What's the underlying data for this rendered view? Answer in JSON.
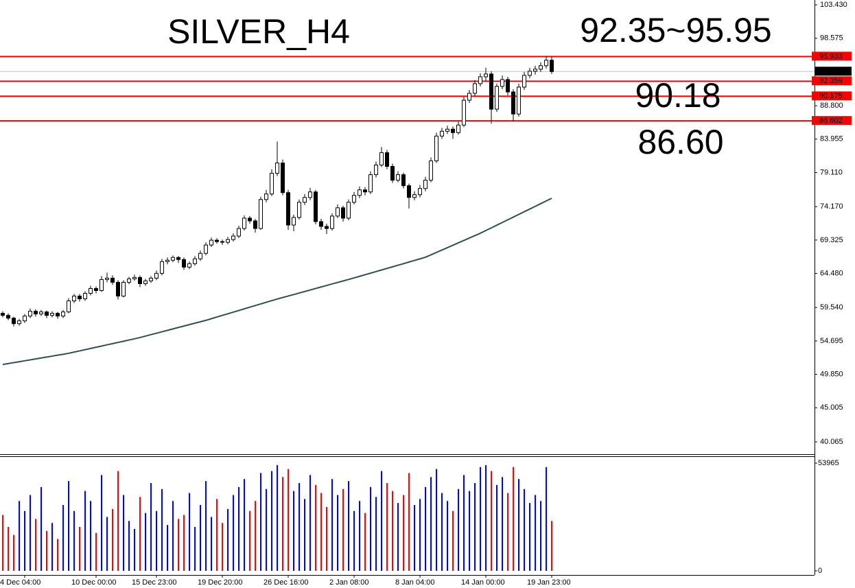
{
  "chart_data": {
    "type": "candlestick",
    "title": "SILVER_H4",
    "annotations": [
      {
        "text": "92.35~95.95",
        "color": "#000080"
      },
      {
        "text": "90.18",
        "color": "#ff0000"
      },
      {
        "text": "86.60",
        "color": "#ff0000"
      }
    ],
    "title_color": "#ff0000",
    "categories": [
      null,
      null,
      null,
      null,
      "4 Dec 04:00",
      null,
      null,
      null,
      null,
      null,
      null,
      null,
      null,
      null,
      null,
      null,
      null,
      "10 Dec 00:00",
      null,
      null,
      null,
      null,
      null,
      null,
      null,
      null,
      null,
      null,
      "15 Dec 23:00",
      null,
      null,
      null,
      null,
      null,
      null,
      null,
      null,
      null,
      null,
      null,
      "19 Dec 20:00",
      null,
      null,
      null,
      null,
      null,
      null,
      null,
      null,
      null,
      null,
      null,
      "26 Dec 16:00",
      null,
      null,
      null,
      null,
      null,
      null,
      null,
      null,
      null,
      null,
      null,
      "2 Jan 08:00",
      null,
      null,
      null,
      null,
      null,
      null,
      null,
      null,
      null,
      null,
      null,
      "8 Jan 04:00",
      null,
      null,
      null,
      null,
      null,
      null,
      null,
      null,
      null,
      null,
      null,
      "14 Jan 00:00",
      null,
      null,
      null,
      null,
      null,
      null,
      null,
      null,
      null,
      null,
      null,
      "19 Jan 23:00"
    ],
    "candles": [
      [
        58.7,
        59.0,
        58.1,
        58.4
      ],
      [
        58.4,
        58.7,
        57.7,
        58.0
      ],
      [
        58.0,
        58.2,
        56.8,
        57.2
      ],
      [
        57.2,
        57.9,
        56.9,
        57.6
      ],
      [
        57.6,
        58.6,
        57.3,
        58.3
      ],
      [
        58.3,
        59.4,
        58.0,
        59.0
      ],
      [
        59.0,
        59.3,
        58.2,
        58.6
      ],
      [
        58.6,
        59.2,
        58.3,
        58.9
      ],
      [
        58.9,
        59.1,
        58.0,
        58.4
      ],
      [
        58.4,
        59.0,
        58.1,
        58.7
      ],
      [
        58.7,
        58.9,
        57.9,
        58.3
      ],
      [
        58.3,
        59.2,
        58.0,
        58.9
      ],
      [
        58.9,
        60.9,
        58.7,
        60.5
      ],
      [
        60.5,
        61.5,
        60.2,
        61.2
      ],
      [
        61.2,
        61.5,
        60.4,
        60.8
      ],
      [
        60.8,
        61.9,
        60.5,
        61.6
      ],
      [
        61.6,
        62.7,
        61.3,
        62.3
      ],
      [
        62.3,
        62.6,
        61.6,
        62.0
      ],
      [
        62.0,
        64.1,
        61.8,
        63.6
      ],
      [
        63.6,
        64.6,
        63.2,
        63.8
      ],
      [
        63.8,
        64.2,
        62.8,
        63.2
      ],
      [
        63.2,
        63.5,
        60.7,
        61.2
      ],
      [
        61.2,
        63.5,
        61.0,
        63.2
      ],
      [
        63.2,
        64.0,
        62.9,
        63.7
      ],
      [
        63.7,
        64.3,
        63.4,
        63.9
      ],
      [
        63.9,
        64.2,
        62.5,
        63.0
      ],
      [
        63.0,
        63.7,
        62.7,
        63.4
      ],
      [
        63.4,
        64.1,
        63.1,
        63.8
      ],
      [
        63.8,
        64.9,
        63.5,
        64.5
      ],
      [
        64.5,
        66.6,
        64.2,
        66.2
      ],
      [
        66.2,
        66.8,
        65.8,
        66.4
      ],
      [
        66.4,
        67.1,
        66.1,
        66.8
      ],
      [
        66.8,
        67.0,
        66.0,
        66.5
      ],
      [
        66.5,
        66.8,
        65.0,
        65.4
      ],
      [
        65.4,
        66.2,
        65.1,
        65.9
      ],
      [
        65.9,
        67.0,
        65.6,
        66.6
      ],
      [
        66.6,
        67.8,
        66.3,
        67.4
      ],
      [
        67.4,
        69.0,
        67.1,
        68.6
      ],
      [
        68.6,
        69.7,
        68.3,
        69.3
      ],
      [
        69.3,
        69.6,
        68.8,
        69.1
      ],
      [
        69.1,
        69.4,
        68.6,
        69.0
      ],
      [
        69.0,
        69.8,
        68.7,
        69.4
      ],
      [
        69.4,
        70.3,
        69.1,
        69.9
      ],
      [
        69.9,
        71.4,
        69.6,
        71.0
      ],
      [
        71.0,
        72.9,
        70.7,
        72.5
      ],
      [
        72.5,
        72.8,
        71.7,
        72.1
      ],
      [
        72.1,
        72.4,
        70.4,
        71.0
      ],
      [
        71.0,
        75.6,
        70.8,
        75.2
      ],
      [
        75.2,
        76.6,
        74.8,
        76.0
      ],
      [
        76.0,
        79.6,
        75.7,
        79.0
      ],
      [
        79.0,
        83.6,
        78.6,
        80.5
      ],
      [
        80.5,
        81.0,
        75.8,
        76.2
      ],
      [
        76.2,
        76.6,
        70.8,
        71.5
      ],
      [
        71.5,
        73.0,
        70.6,
        72.6
      ],
      [
        72.6,
        75.2,
        72.3,
        74.8
      ],
      [
        74.8,
        76.0,
        74.4,
        75.5
      ],
      [
        75.5,
        76.9,
        75.1,
        76.3
      ],
      [
        76.3,
        76.6,
        71.6,
        72.0
      ],
      [
        72.0,
        72.4,
        70.8,
        71.3
      ],
      [
        71.3,
        71.7,
        70.2,
        71.0
      ],
      [
        71.0,
        73.2,
        70.7,
        72.8
      ],
      [
        72.8,
        74.5,
        72.5,
        74.0
      ],
      [
        74.0,
        74.3,
        72.0,
        72.5
      ],
      [
        72.5,
        75.2,
        72.2,
        74.8
      ],
      [
        74.8,
        76.3,
        74.5,
        75.8
      ],
      [
        75.8,
        77.1,
        75.4,
        76.6
      ],
      [
        76.6,
        77.0,
        75.8,
        76.3
      ],
      [
        76.3,
        79.3,
        76.0,
        78.8
      ],
      [
        78.8,
        80.7,
        78.4,
        80.2
      ],
      [
        80.2,
        82.8,
        79.9,
        82.0
      ],
      [
        82.0,
        82.4,
        79.6,
        80.0
      ],
      [
        80.0,
        80.4,
        77.6,
        78.0
      ],
      [
        78.0,
        79.3,
        77.7,
        78.8
      ],
      [
        78.8,
        79.1,
        76.8,
        77.2
      ],
      [
        77.2,
        77.5,
        73.9,
        75.5
      ],
      [
        75.5,
        76.4,
        75.1,
        75.9
      ],
      [
        75.9,
        77.3,
        75.5,
        76.8
      ],
      [
        76.8,
        78.5,
        76.4,
        78.0
      ],
      [
        78.0,
        81.3,
        77.7,
        80.8
      ],
      [
        80.8,
        84.9,
        80.5,
        84.4
      ],
      [
        84.4,
        85.6,
        84.0,
        85.1
      ],
      [
        85.1,
        85.9,
        84.7,
        85.4
      ],
      [
        85.4,
        85.8,
        84.0,
        84.9
      ],
      [
        84.9,
        86.5,
        84.6,
        86.0
      ],
      [
        86.0,
        90.1,
        85.7,
        89.6
      ],
      [
        89.6,
        91.1,
        89.2,
        90.6
      ],
      [
        90.6,
        92.5,
        90.2,
        92.0
      ],
      [
        92.0,
        93.5,
        91.6,
        93.0
      ],
      [
        93.0,
        94.3,
        92.4,
        93.4
      ],
      [
        93.4,
        93.8,
        86.2,
        88.3
      ],
      [
        88.3,
        92.0,
        87.9,
        91.6
      ],
      [
        91.6,
        93.2,
        91.2,
        92.6
      ],
      [
        92.6,
        93.0,
        90.3,
        90.8
      ],
      [
        90.8,
        91.2,
        86.5,
        87.6
      ],
      [
        87.6,
        92.0,
        87.2,
        91.5
      ],
      [
        91.5,
        93.7,
        91.1,
        93.2
      ],
      [
        93.2,
        94.3,
        92.8,
        93.8
      ],
      [
        93.8,
        94.6,
        93.3,
        94.1
      ],
      [
        94.1,
        95.1,
        93.7,
        94.6
      ],
      [
        94.6,
        96.0,
        94.2,
        95.4
      ],
      [
        95.4,
        95.9,
        93.4,
        93.756
      ]
    ],
    "ma": [
      51.28,
      51.41,
      51.55,
      51.68,
      51.82,
      51.95,
      52.09,
      52.22,
      52.36,
      52.49,
      52.63,
      52.76,
      52.9,
      53.08,
      53.25,
      53.43,
      53.6,
      53.78,
      53.95,
      54.13,
      54.3,
      54.48,
      54.65,
      54.83,
      55.0,
      55.19,
      55.4,
      55.61,
      55.81,
      56.02,
      56.23,
      56.44,
      56.65,
      56.85,
      57.06,
      57.27,
      57.47,
      57.68,
      57.92,
      58.16,
      58.4,
      58.63,
      58.87,
      59.11,
      59.35,
      59.59,
      59.83,
      60.06,
      60.3,
      60.54,
      60.77,
      60.99,
      61.21,
      61.42,
      61.64,
      61.86,
      62.08,
      62.3,
      62.52,
      62.74,
      62.96,
      63.17,
      63.39,
      63.61,
      63.83,
      64.06,
      64.29,
      64.52,
      64.75,
      64.98,
      65.21,
      65.44,
      65.67,
      65.9,
      66.14,
      66.37,
      66.6,
      66.83,
      67.18,
      67.53,
      67.87,
      68.22,
      68.57,
      68.92,
      69.27,
      69.61,
      69.96,
      70.31,
      70.7,
      71.09,
      71.48,
      71.87,
      72.26,
      72.65,
      73.04,
      73.43,
      73.82,
      74.21,
      74.6,
      74.99,
      75.38
    ],
    "ma_color": "#2f4f4f",
    "up_color": "#ffffff",
    "down_color": "#000000",
    "volume_up_color": "#0000ff",
    "volume_down_color": "#ff0000",
    "volumes": [
      28000,
      22000,
      18000,
      35000,
      30000,
      38000,
      26000,
      42000,
      20000,
      24000,
      16000,
      33000,
      45000,
      30000,
      22000,
      40000,
      35000,
      19000,
      48000,
      27000,
      31000,
      50000,
      38000,
      25000,
      21000,
      37000,
      29000,
      44000,
      30000,
      41000,
      23000,
      35000,
      26000,
      28000,
      39000,
      22000,
      33000,
      45000,
      27000,
      36000,
      24000,
      31000,
      38000,
      42000,
      46000,
      30000,
      35000,
      49000,
      41000,
      50000,
      53000,
      47000,
      51000,
      40000,
      44000,
      36000,
      48000,
      43000,
      39000,
      32000,
      46000,
      38000,
      41000,
      45000,
      30000,
      35000,
      29000,
      42000,
      37000,
      50000,
      44000,
      40000,
      34000,
      38000,
      49000,
      33000,
      36000,
      42000,
      47000,
      51000,
      39000,
      35000,
      30000,
      41000,
      48000,
      40000,
      44000,
      52000,
      53000,
      50000,
      43000,
      47000,
      39000,
      52000,
      46000,
      41000,
      34000,
      38000,
      35000,
      52000,
      25000
    ],
    "vlim": [
      -2060,
      57400
    ],
    "vticks": [
      53965,
      0
    ],
    "ylim": [
      38.27,
      104.13
    ],
    "yticks": [
      {
        "value": 103.43,
        "label": "103.430"
      },
      98.575,
      {
        "value": 88.8,
        "label": "88.800"
      },
      83.955,
      {
        "value": 79.11,
        "label": "79.110"
      },
      {
        "value": 74.17,
        "label": "74.170"
      },
      69.325,
      {
        "value": 64.48,
        "label": "64.480"
      },
      {
        "value": 59.54,
        "label": "59.540"
      },
      54.695,
      {
        "value": 49.85,
        "label": "49.850"
      },
      45.005,
      40.065
    ],
    "levels": [
      95.933,
      92.359,
      90.175,
      86.602
    ],
    "level_color": "#ff0000",
    "current_price": 93.756
  }
}
